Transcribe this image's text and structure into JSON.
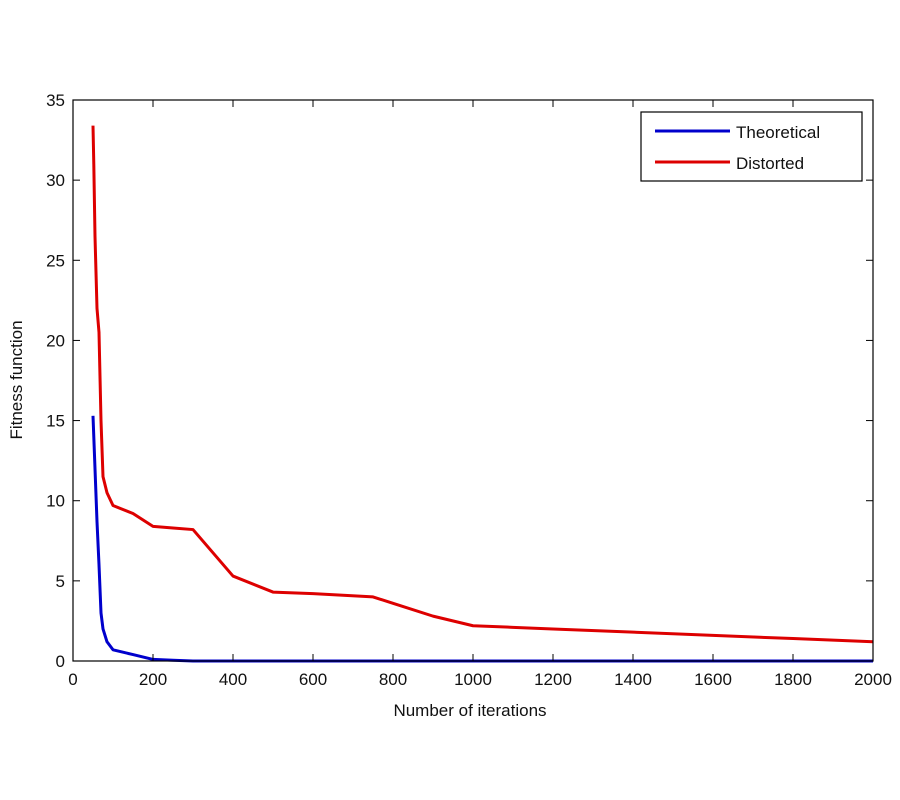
{
  "chart_data": {
    "type": "line",
    "title": "",
    "xlabel": "Number of iterations",
    "ylabel": "Fitness function",
    "xlim": [
      0,
      2000
    ],
    "ylim": [
      0,
      35
    ],
    "xticks": [
      0,
      200,
      400,
      600,
      800,
      1000,
      1200,
      1400,
      1600,
      1800,
      2000
    ],
    "yticks": [
      0,
      5,
      10,
      15,
      20,
      25,
      30,
      35
    ],
    "grid": false,
    "legend_position": "top-right",
    "series": [
      {
        "name": "Theoretical",
        "color": "#0000cc",
        "x": [
          50,
          55,
          60,
          65,
          70,
          75,
          85,
          100,
          150,
          200,
          250,
          300,
          2000
        ],
        "y": [
          15.3,
          12,
          8.7,
          6,
          3,
          2,
          1.2,
          0.7,
          0.4,
          0.1,
          0.05,
          0,
          0
        ]
      },
      {
        "name": "Distorted",
        "color": "#dd0000",
        "x": [
          50,
          52,
          55,
          60,
          65,
          70,
          75,
          85,
          100,
          150,
          200,
          250,
          300,
          400,
          500,
          600,
          750,
          800,
          900,
          1000,
          1100,
          1200,
          1400,
          1600,
          1800,
          2000
        ],
        "y": [
          33.4,
          31,
          26.5,
          22,
          20.5,
          15,
          11.5,
          10.5,
          9.7,
          9.2,
          8.4,
          8.3,
          8.2,
          5.3,
          4.3,
          4.2,
          4.0,
          3.6,
          2.8,
          2.2,
          2.1,
          2.0,
          1.8,
          1.6,
          1.4,
          1.2
        ]
      }
    ]
  }
}
